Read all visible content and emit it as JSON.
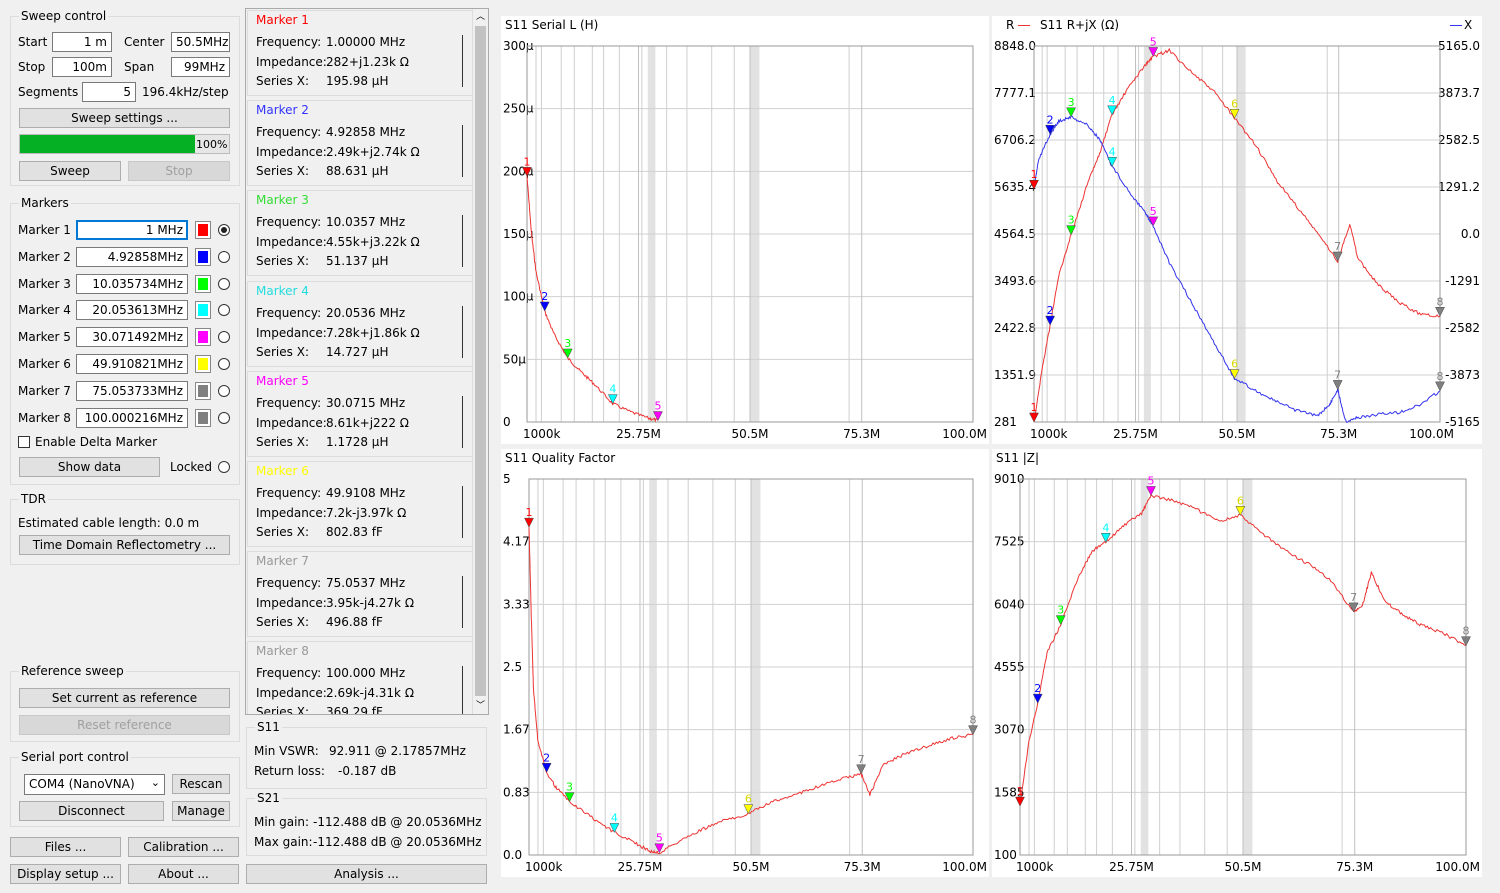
{
  "sweep": {
    "title": "Sweep control",
    "start_label": "Start",
    "start_val": "1 m",
    "stop_label": "Stop",
    "stop_val": "100m",
    "center_label": "Center",
    "center_val": "50.5MHz",
    "span_label": "Span",
    "span_val": "99MHz",
    "segments_label": "Segments",
    "segments_val": "5",
    "step": "196.4kHz/step",
    "settings_btn": "Sweep settings ...",
    "progress": 1.0,
    "progress_text": "100%",
    "sweep_btn": "Sweep",
    "stop_btn": "Stop"
  },
  "markers": {
    "title": "Markers",
    "items": [
      {
        "label": "Marker 1",
        "value": "1 MHz",
        "color": "#ff0000",
        "selected": true
      },
      {
        "label": "Marker 2",
        "value": "4.92858MHz",
        "color": "#0000ff",
        "selected": false
      },
      {
        "label": "Marker 3",
        "value": "10.035734MHz",
        "color": "#00ff00",
        "selected": false
      },
      {
        "label": "Marker 4",
        "value": "20.053613MHz",
        "color": "#00ffff",
        "selected": false
      },
      {
        "label": "Marker 5",
        "value": "30.071492MHz",
        "color": "#ff00ff",
        "selected": false
      },
      {
        "label": "Marker 6",
        "value": "49.910821MHz",
        "color": "#ffff00",
        "selected": false
      },
      {
        "label": "Marker 7",
        "value": "75.053733MHz",
        "color": "#808080",
        "selected": false
      },
      {
        "label": "Marker 8",
        "value": "100.000216MHz",
        "color": "#808080",
        "selected": false
      }
    ],
    "delta_label": "Enable Delta Marker",
    "show_data_btn": "Show data",
    "locked_label": "Locked"
  },
  "tdr": {
    "title": "TDR",
    "cable_text": "Estimated cable length: 0.0 m",
    "btn": "Time Domain Reflectometry ..."
  },
  "reference": {
    "title": "Reference sweep",
    "set_btn": "Set current as reference",
    "reset_btn": "Reset reference"
  },
  "serial": {
    "title": "Serial port control",
    "port": "COM4 (NanoVNA)",
    "rescan_btn": "Rescan",
    "disconnect_btn": "Disconnect",
    "manage_btn": "Manage"
  },
  "bottom": {
    "files_btn": "Files ...",
    "calibration_btn": "Calibration ...",
    "display_btn": "Display setup ...",
    "about_btn": "About ...",
    "analysis_btn": "Analysis ..."
  },
  "marker_panels": [
    {
      "title": "Marker 1",
      "color": "#ff0000",
      "freq": "1.00000 MHz",
      "imp": "282+j1.23k Ω",
      "sx": "195.98 µH"
    },
    {
      "title": "Marker 2",
      "color": "#3333ff",
      "freq": "4.92858 MHz",
      "imp": "2.49k+j2.74k Ω",
      "sx": "88.631 µH"
    },
    {
      "title": "Marker 3",
      "color": "#33dd33",
      "freq": "10.0357 MHz",
      "imp": "4.55k+j3.22k Ω",
      "sx": "51.137 µH"
    },
    {
      "title": "Marker 4",
      "color": "#22dddd",
      "freq": "20.0536 MHz",
      "imp": "7.28k+j1.86k Ω",
      "sx": "14.727 µH"
    },
    {
      "title": "Marker 5",
      "color": "#ff00ff",
      "freq": "30.0715 MHz",
      "imp": "8.61k+j222 Ω",
      "sx": "1.1728 µH"
    },
    {
      "title": "Marker 6",
      "color": "#ffff00",
      "freq": "49.9108 MHz",
      "imp": "7.2k-j3.97k Ω",
      "sx": "802.83 fF"
    },
    {
      "title": "Marker 7",
      "color": "#999999",
      "freq": "75.0537 MHz",
      "imp": "3.95k-j4.27k Ω",
      "sx": "496.88 fF"
    },
    {
      "title": "Marker 8",
      "color": "#999999",
      "freq": "100.000 MHz",
      "imp": "2.69k-j4.31k Ω",
      "sx": "369.29 fF"
    }
  ],
  "labels": {
    "freq": "Frequency:",
    "imp": "Impedance:",
    "sx": "Series X:"
  },
  "s11": {
    "title": "S11",
    "vswr_label": "Min VSWR:",
    "vswr": "92.911 @ 2.17857MHz",
    "rl_label": "Return loss:",
    "rl": "-0.187 dB"
  },
  "s21": {
    "title": "S21",
    "min_label": "Min gain:",
    "min": "-112.488 dB @ 20.0536MHz",
    "max_label": "Max gain:",
    "max": "-112.488 dB @ 20.0536MHz"
  },
  "chart_data": [
    {
      "type": "line",
      "title": "S11 Serial L (H)",
      "yticks": [
        "300µ",
        "250µ",
        "200µ",
        "150µ",
        "100µ",
        "50µ",
        "0"
      ],
      "ylim": [
        0,
        300
      ],
      "xticks": [
        "1000k",
        "25.75M",
        "50.5M",
        "75.3M",
        "100.0M"
      ],
      "xlim": [
        1,
        100
      ],
      "series": [
        {
          "color": "#ee3333",
          "x": [
            1,
            2,
            3,
            4.9,
            7,
            10,
            13,
            16,
            20,
            24,
            28,
            30.07
          ],
          "y": [
            196,
            150,
            120,
            88.6,
            70,
            51.1,
            40,
            30,
            14.7,
            8,
            3,
            1.17
          ]
        }
      ],
      "markers": [
        {
          "n": "1",
          "x": 1,
          "y": 196
        },
        {
          "n": "2",
          "x": 4.93,
          "y": 88.6
        },
        {
          "n": "3",
          "x": 10.04,
          "y": 51.1
        },
        {
          "n": "4",
          "x": 20.05,
          "y": 14.7
        },
        {
          "n": "5",
          "x": 30.07,
          "y": 1.17
        }
      ]
    },
    {
      "type": "line",
      "title": "S11 R+jX (Ω)",
      "legend_r": "R",
      "legend_x": "X",
      "yticks": [
        "8848.0",
        "7777.1",
        "6706.2",
        "5635.4",
        "4564.5",
        "3493.6",
        "2422.8",
        "1351.9",
        "281"
      ],
      "ylim": [
        281,
        8848
      ],
      "yticks_right": [
        "5165.0",
        "3873.7",
        "2582.5",
        "1291.2",
        "0.0",
        "-1291",
        "-2582",
        "-3873",
        "-5165"
      ],
      "ylim_right": [
        -5165,
        5165
      ],
      "xticks": [
        "1000k",
        "25.75M",
        "50.5M",
        "75.3M",
        "100.0M"
      ],
      "xlim": [
        1,
        100
      ],
      "series": [
        {
          "name": "R",
          "color": "#ee3333",
          "x": [
            1,
            3,
            4.93,
            7,
            10.04,
            14,
            17,
            20.05,
            24,
            28,
            30.07,
            34,
            40,
            45,
            49.9,
            55,
            60,
            65,
            70,
            75.05,
            78,
            80,
            85,
            90,
            95,
            100
          ],
          "y": [
            282,
            1500,
            2490,
            3600,
            4550,
            5700,
            6400,
            7280,
            7900,
            8400,
            8610,
            8750,
            8200,
            7800,
            7200,
            6600,
            5800,
            5200,
            4600,
            3950,
            4800,
            4000,
            3400,
            3000,
            2750,
            2690
          ]
        },
        {
          "name": "X",
          "color": "#3333ee",
          "x": [
            1,
            2,
            4.93,
            7,
            10.04,
            14,
            17,
            20.05,
            24,
            28,
            30.07,
            34,
            40,
            45,
            49.9,
            55,
            60,
            65,
            70,
            73,
            75.05,
            77,
            80,
            85,
            90,
            95,
            100
          ],
          "y": [
            1230,
            2000,
            2740,
            3100,
            3220,
            3000,
            2600,
            1860,
            1200,
            600,
            222,
            -800,
            -2000,
            -3000,
            -3970,
            -4300,
            -4600,
            -4850,
            -5000,
            -4700,
            -4270,
            -5150,
            -5050,
            -4950,
            -4900,
            -4700,
            -4310
          ]
        }
      ],
      "markers": [
        {
          "n": "1",
          "x": 1,
          "axis": "R",
          "y": 282
        },
        {
          "n": "2",
          "x": 4.93,
          "axis": "R",
          "y": 2490
        },
        {
          "n": "3",
          "x": 10.04,
          "axis": "R",
          "y": 4550
        },
        {
          "n": "4",
          "x": 20.05,
          "axis": "R",
          "y": 7280
        },
        {
          "n": "5",
          "x": 30.07,
          "axis": "R",
          "y": 8610
        },
        {
          "n": "6",
          "x": 49.91,
          "axis": "R",
          "y": 7200
        },
        {
          "n": "7",
          "x": 75.05,
          "axis": "R",
          "y": 3950
        },
        {
          "n": "8",
          "x": 100,
          "axis": "R",
          "y": 2690
        },
        {
          "n": "1",
          "x": 1,
          "axis": "X",
          "y": 1230
        },
        {
          "n": "2",
          "x": 4.93,
          "axis": "X",
          "y": 2740
        },
        {
          "n": "3",
          "x": 10.04,
          "axis": "X",
          "y": 3220
        },
        {
          "n": "4",
          "x": 20.05,
          "axis": "X",
          "y": 1860
        },
        {
          "n": "5",
          "x": 30.07,
          "axis": "X",
          "y": 222
        },
        {
          "n": "6",
          "x": 49.91,
          "axis": "X",
          "y": -3970
        },
        {
          "n": "7",
          "x": 75.05,
          "axis": "X",
          "y": -4270
        },
        {
          "n": "8",
          "x": 100,
          "axis": "X",
          "y": -4310
        }
      ]
    },
    {
      "type": "line",
      "title": "S11 Quality Factor",
      "yticks": [
        "5",
        "4.17",
        "3.33",
        "2.5",
        "1.67",
        "0.83",
        "0.0"
      ],
      "ylim": [
        0,
        5
      ],
      "xticks": [
        "1000k",
        "25.75M",
        "50.5M",
        "75.3M",
        "100.0M"
      ],
      "xlim": [
        1,
        100
      ],
      "series": [
        {
          "color": "#ee3333",
          "x": [
            1,
            1.5,
            2,
            3,
            4.93,
            7,
            10.04,
            15,
            20.05,
            25,
            28,
            30.07,
            35,
            40,
            45,
            49.91,
            55,
            60,
            65,
            70,
            75.05,
            77,
            80,
            85,
            90,
            95,
            100
          ],
          "y": [
            4.36,
            3.2,
            2.2,
            1.5,
            1.1,
            0.9,
            0.71,
            0.5,
            0.3,
            0.15,
            0.05,
            0.03,
            0.2,
            0.35,
            0.47,
            0.55,
            0.7,
            0.8,
            0.9,
            1.0,
            1.08,
            0.8,
            1.2,
            1.35,
            1.45,
            1.55,
            1.6
          ]
        }
      ],
      "markers": [
        {
          "n": "1",
          "x": 1,
          "y": 4.36
        },
        {
          "n": "2",
          "x": 4.93,
          "y": 1.1
        },
        {
          "n": "3",
          "x": 10.04,
          "y": 0.71
        },
        {
          "n": "4",
          "x": 20.05,
          "y": 0.3
        },
        {
          "n": "5",
          "x": 30.07,
          "y": 0.03
        },
        {
          "n": "6",
          "x": 49.91,
          "y": 0.55
        },
        {
          "n": "7",
          "x": 75.05,
          "y": 1.08
        },
        {
          "n": "8",
          "x": 100,
          "y": 1.6
        }
      ]
    },
    {
      "type": "line",
      "title": "S11 |Z|",
      "yticks": [
        "9010",
        "7525",
        "6040",
        "4555",
        "3070",
        "1585",
        "100"
      ],
      "ylim": [
        100,
        9010
      ],
      "xticks": [
        "1000k",
        "25.75M",
        "50.5M",
        "75.3M",
        "100.0M"
      ],
      "xlim": [
        1,
        100
      ],
      "series": [
        {
          "color": "#ee3333",
          "x": [
            1,
            3,
            4.93,
            7,
            10.04,
            14,
            17,
            20.05,
            24,
            28,
            30.07,
            35,
            40,
            45,
            49.91,
            55,
            60,
            65,
            70,
            75.05,
            77,
            79,
            82,
            86,
            90,
            95,
            100
          ],
          "y": [
            1260,
            2800,
            3700,
            4900,
            5560,
            6700,
            7300,
            7510,
            7900,
            8200,
            8620,
            8500,
            8300,
            8000,
            8150,
            7700,
            7300,
            7000,
            6600,
            5860,
            6000,
            6800,
            6100,
            5800,
            5550,
            5350,
            5060
          ]
        }
      ],
      "markers": [
        {
          "n": "1",
          "x": 1,
          "y": 1260
        },
        {
          "n": "2",
          "x": 4.93,
          "y": 3700
        },
        {
          "n": "3",
          "x": 10.04,
          "y": 5560
        },
        {
          "n": "4",
          "x": 20.05,
          "y": 7510
        },
        {
          "n": "5",
          "x": 30.07,
          "y": 8620
        },
        {
          "n": "6",
          "x": 49.91,
          "y": 8150
        },
        {
          "n": "7",
          "x": 75.05,
          "y": 5860
        },
        {
          "n": "8",
          "x": 100,
          "y": 5060
        }
      ]
    }
  ]
}
